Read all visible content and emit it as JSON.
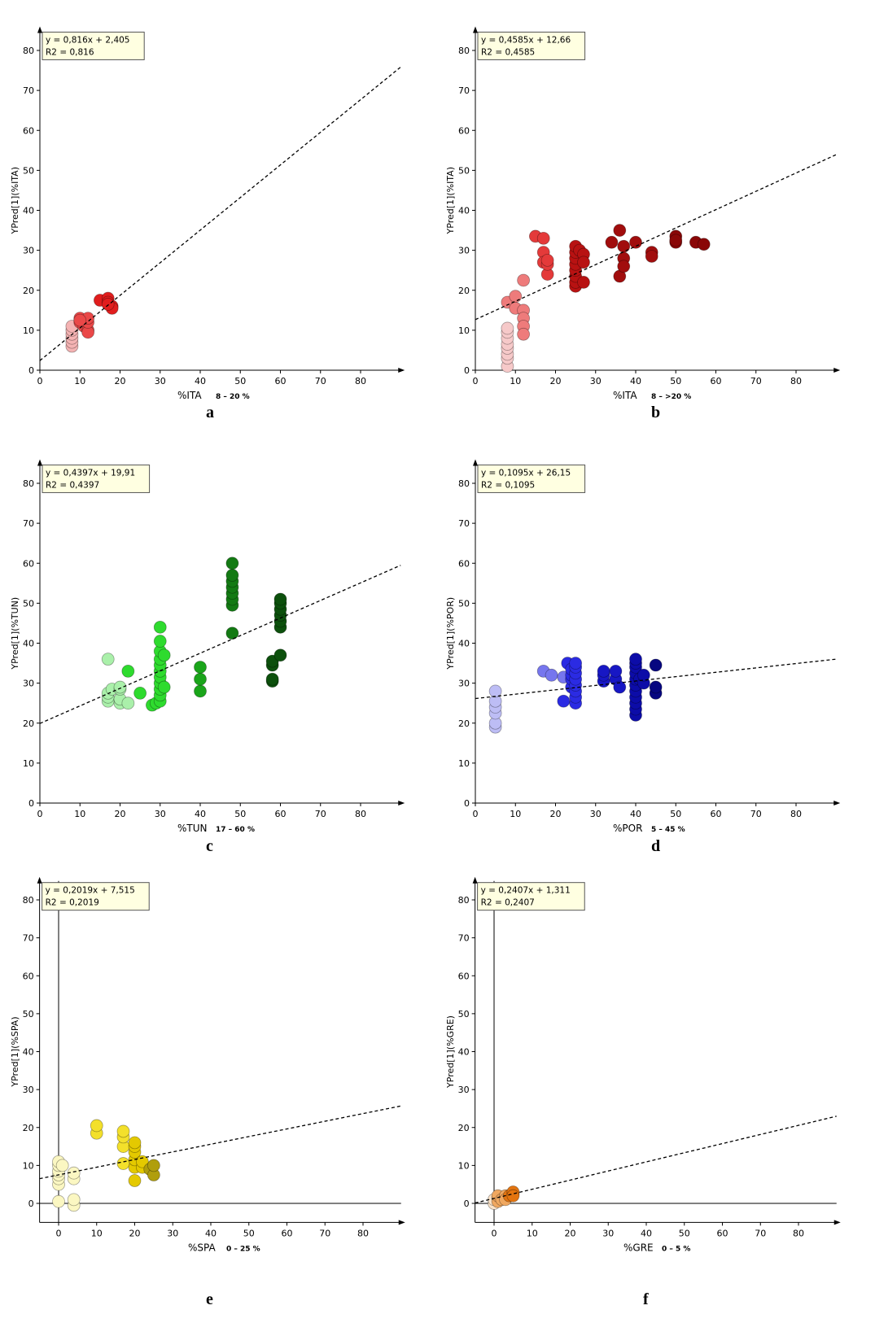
{
  "chart_data": [
    {
      "type": "scatter",
      "panel_letter": "a",
      "xlabel": "%ITA",
      "xrange_label": "8 – 20 %",
      "ylabel": "YPred[1](%ITA)",
      "xlim": [
        0,
        90
      ],
      "ylim": [
        0,
        85
      ],
      "xticks": [
        0,
        10,
        20,
        30,
        40,
        50,
        60,
        70,
        80
      ],
      "yticks": [
        0,
        10,
        20,
        30,
        40,
        50,
        60,
        70,
        80
      ],
      "equation": "y = 0,816x + 2,405",
      "r2": "R2 = 0,816",
      "trend": {
        "slope": 0.816,
        "intercept": 2.405
      },
      "series": [
        {
          "color": "#f4b3b3",
          "points": [
            [
              8,
              6
            ],
            [
              8,
              7
            ],
            [
              8,
              8
            ],
            [
              8,
              9
            ],
            [
              8,
              10
            ],
            [
              8,
              11
            ]
          ]
        },
        {
          "color": "#ea4848",
          "points": [
            [
              10,
              12
            ],
            [
              10,
              13
            ],
            [
              11,
              11
            ],
            [
              12,
              10
            ],
            [
              12,
              9.5
            ],
            [
              12,
              12
            ],
            [
              12,
              13
            ],
            [
              10,
              12.5
            ]
          ]
        },
        {
          "color": "#e11d1d",
          "points": [
            [
              15,
              17.5
            ],
            [
              17,
              18
            ],
            [
              17,
              17
            ],
            [
              18,
              16
            ],
            [
              18,
              15.5
            ],
            [
              17,
              16.5
            ]
          ]
        }
      ]
    },
    {
      "type": "scatter",
      "panel_letter": "b",
      "xlabel": "%ITA",
      "xrange_label": "8 – >20 %",
      "ylabel": "YPred[1](%ITA)",
      "xlim": [
        0,
        90
      ],
      "ylim": [
        0,
        85
      ],
      "xticks": [
        0,
        10,
        20,
        30,
        40,
        50,
        60,
        70,
        80
      ],
      "yticks": [
        0,
        10,
        20,
        30,
        40,
        50,
        60,
        70,
        80
      ],
      "equation": "y = 0,4585x + 12,66",
      "r2": "R2 = 0,4585",
      "trend": {
        "slope": 0.4585,
        "intercept": 12.66
      },
      "series": [
        {
          "color": "#f6c9c9",
          "points": [
            [
              8,
              1
            ],
            [
              8,
              3
            ],
            [
              8,
              4
            ],
            [
              8,
              5.5
            ],
            [
              8,
              6.5
            ],
            [
              8,
              8
            ],
            [
              8,
              9.5
            ],
            [
              8,
              10.5
            ]
          ]
        },
        {
          "color": "#ee7b7b",
          "points": [
            [
              8,
              17
            ],
            [
              10,
              18.5
            ],
            [
              10,
              15.5
            ],
            [
              12,
              22.5
            ],
            [
              12,
              15
            ],
            [
              12,
              13
            ],
            [
              12,
              11
            ],
            [
              12,
              9
            ]
          ]
        },
        {
          "color": "#e43a3a",
          "points": [
            [
              15,
              33.5
            ],
            [
              17,
              33
            ],
            [
              17,
              29.5
            ],
            [
              17,
              27
            ],
            [
              18,
              24
            ],
            [
              18,
              26.5
            ],
            [
              18,
              27.5
            ]
          ]
        },
        {
          "color": "#b81212",
          "points": [
            [
              25,
              21
            ],
            [
              25,
              22
            ],
            [
              25,
              23.5
            ],
            [
              25,
              25
            ],
            [
              25,
              26.5
            ],
            [
              25,
              28
            ],
            [
              25,
              29.5
            ],
            [
              25,
              31
            ],
            [
              26,
              30
            ],
            [
              27,
              29
            ],
            [
              27,
              27
            ],
            [
              27,
              22
            ]
          ]
        },
        {
          "color": "#a10d0d",
          "points": [
            [
              34,
              32
            ],
            [
              36,
              35
            ],
            [
              36,
              23.5
            ],
            [
              37,
              31
            ],
            [
              37,
              28
            ],
            [
              37,
              26
            ],
            [
              40,
              32
            ],
            [
              44,
              29.5
            ],
            [
              44,
              28.5
            ]
          ]
        },
        {
          "color": "#8a0707",
          "points": [
            [
              50,
              32
            ],
            [
              50,
              33.5
            ],
            [
              50,
              32.5
            ],
            [
              55,
              32
            ],
            [
              57,
              31.5
            ]
          ]
        }
      ]
    },
    {
      "type": "scatter",
      "panel_letter": "c",
      "xlabel": "%TUN",
      "xrange_label": "17 – 60 %",
      "ylabel": "YPred[1](%TUN)",
      "xlim": [
        0,
        90
      ],
      "ylim": [
        0,
        85
      ],
      "xticks": [
        0,
        10,
        20,
        30,
        40,
        50,
        60,
        70,
        80
      ],
      "yticks": [
        0,
        10,
        20,
        30,
        40,
        50,
        60,
        70,
        80
      ],
      "equation": "y = 0,4397x + 19,91",
      "r2": "R2 = 0,4397",
      "trend": {
        "slope": 0.4397,
        "intercept": 19.91
      },
      "series": [
        {
          "color": "#aaf0aa",
          "points": [
            [
              17,
              36
            ],
            [
              17,
              25.5
            ],
            [
              17,
              26.5
            ],
            [
              17,
              27.5
            ],
            [
              18,
              28.5
            ],
            [
              20,
              25
            ],
            [
              20,
              26
            ],
            [
              20,
              28.5
            ],
            [
              20,
              29
            ],
            [
              22,
              25
            ]
          ]
        },
        {
          "color": "#2edb2e",
          "points": [
            [
              22,
              33
            ],
            [
              25,
              27.5
            ],
            [
              28,
              24.5
            ],
            [
              29,
              25
            ],
            [
              30,
              25.5
            ],
            [
              30,
              27
            ],
            [
              30,
              28.5
            ],
            [
              30,
              30
            ],
            [
              30,
              31.5
            ],
            [
              30,
              33
            ],
            [
              30,
              34.5
            ],
            [
              30,
              36
            ],
            [
              30,
              38
            ],
            [
              30,
              40.5
            ],
            [
              30,
              44
            ],
            [
              31,
              29
            ],
            [
              31,
              37
            ]
          ]
        },
        {
          "color": "#1aa51a",
          "points": [
            [
              40,
              28
            ],
            [
              40,
              31
            ],
            [
              40,
              34
            ]
          ]
        },
        {
          "color": "#137a13",
          "points": [
            [
              48,
              42.5
            ],
            [
              48,
              49.5
            ],
            [
              48,
              51
            ],
            [
              48,
              52.5
            ],
            [
              48,
              54
            ],
            [
              48,
              55.5
            ],
            [
              48,
              57
            ],
            [
              48,
              60
            ]
          ]
        },
        {
          "color": "#0c500c",
          "points": [
            [
              58,
              30.5
            ],
            [
              58,
              31
            ],
            [
              58,
              34.5
            ],
            [
              58,
              35.5
            ],
            [
              60,
              37
            ],
            [
              60,
              44
            ],
            [
              60,
              45.5
            ],
            [
              60,
              47
            ],
            [
              60,
              48.5
            ],
            [
              60,
              50
            ],
            [
              60,
              51
            ]
          ]
        }
      ]
    },
    {
      "type": "scatter",
      "panel_letter": "d",
      "xlabel": "%POR",
      "xrange_label": "5 – 45 %",
      "ylabel": "YPred[1](%POR)",
      "xlim": [
        0,
        90
      ],
      "ylim": [
        0,
        85
      ],
      "xticks": [
        0,
        10,
        20,
        30,
        40,
        50,
        60,
        70,
        80
      ],
      "yticks": [
        0,
        10,
        20,
        30,
        40,
        50,
        60,
        70,
        80
      ],
      "equation": "y = 0,1095x + 26,15",
      "r2": "R2 = 0,1095",
      "trend": {
        "slope": 0.1095,
        "intercept": 26.15
      },
      "series": [
        {
          "color": "#bdbdf5",
          "points": [
            [
              5,
              19
            ],
            [
              5,
              20
            ],
            [
              5,
              22.5
            ],
            [
              5,
              24
            ],
            [
              5,
              25.5
            ],
            [
              5,
              28
            ]
          ]
        },
        {
          "color": "#7676ee",
          "points": [
            [
              17,
              33
            ],
            [
              19,
              32
            ],
            [
              22,
              31.5
            ]
          ]
        },
        {
          "color": "#2b2be3",
          "points": [
            [
              22,
              25.5
            ],
            [
              23,
              35
            ],
            [
              24,
              29
            ],
            [
              24,
              31
            ],
            [
              24,
              32
            ],
            [
              24,
              33.5
            ],
            [
              25,
              25
            ],
            [
              25,
              26.5
            ],
            [
              25,
              28
            ],
            [
              25,
              29.5
            ],
            [
              25,
              31
            ],
            [
              25,
              32.5
            ],
            [
              25,
              34
            ],
            [
              25,
              35
            ]
          ]
        },
        {
          "color": "#1717c4",
          "points": [
            [
              32,
              30.5
            ],
            [
              32,
              32
            ],
            [
              32,
              33
            ],
            [
              35,
              31
            ],
            [
              35,
              33
            ],
            [
              36,
              29
            ]
          ]
        },
        {
          "color": "#0c0ca8",
          "points": [
            [
              40,
              22
            ],
            [
              40,
              23.5
            ],
            [
              40,
              25
            ],
            [
              40,
              26.5
            ],
            [
              40,
              28
            ],
            [
              40,
              29.5
            ],
            [
              40,
              31
            ],
            [
              40,
              32.5
            ],
            [
              40,
              34
            ],
            [
              40,
              35
            ],
            [
              40,
              36
            ],
            [
              41,
              31
            ],
            [
              42,
              30
            ],
            [
              42,
              32
            ]
          ]
        },
        {
          "color": "#070780",
          "points": [
            [
              45,
              27.5
            ],
            [
              45,
              29
            ],
            [
              45,
              34.5
            ]
          ]
        }
      ]
    },
    {
      "type": "scatter",
      "panel_letter": "e",
      "xlabel": "%SPA",
      "xrange_label": "0 – 25 %",
      "ylabel": "YPred[1](%SPA)",
      "xlim": [
        -5,
        90
      ],
      "ylim": [
        -5,
        85
      ],
      "xticks": [
        0,
        10,
        20,
        30,
        40,
        50,
        60,
        70,
        80
      ],
      "yticks": [
        0,
        10,
        20,
        30,
        40,
        50,
        60,
        70,
        80
      ],
      "equation": "y = 0,2019x + 7,515",
      "r2": "R2 = 0,2019",
      "trend": {
        "slope": 0.2019,
        "intercept": 7.515
      },
      "series": [
        {
          "color": "#fbf7c2",
          "points": [
            [
              0,
              0.5
            ],
            [
              0,
              5
            ],
            [
              0,
              6.5
            ],
            [
              0,
              7.5
            ],
            [
              0,
              8.5
            ],
            [
              0,
              10
            ],
            [
              0,
              11
            ],
            [
              1,
              10
            ],
            [
              4,
              -0.5
            ],
            [
              4,
              1
            ],
            [
              4,
              6.5
            ],
            [
              4,
              8
            ]
          ]
        },
        {
          "color": "#f3e02b",
          "points": [
            [
              10,
              18.5
            ],
            [
              10,
              20.5
            ],
            [
              17,
              10.5
            ],
            [
              17,
              15
            ],
            [
              17,
              17.5
            ],
            [
              17,
              19
            ]
          ]
        },
        {
          "color": "#e4c900",
          "points": [
            [
              20,
              6
            ],
            [
              20,
              9.5
            ],
            [
              20,
              11.5
            ],
            [
              20,
              13.5
            ],
            [
              20,
              15
            ],
            [
              20,
              16
            ],
            [
              22,
              9.5
            ],
            [
              22,
              11
            ]
          ]
        },
        {
          "color": "#b09e0c",
          "points": [
            [
              24,
              9
            ],
            [
              25,
              7.5
            ],
            [
              25,
              10
            ]
          ]
        }
      ]
    },
    {
      "type": "scatter",
      "panel_letter": "f",
      "xlabel": "%GRE",
      "xrange_label": "0 – 5 %",
      "ylabel": "YPred[1](%GRE)",
      "xlim": [
        -5,
        90
      ],
      "ylim": [
        -5,
        85
      ],
      "xticks": [
        0,
        10,
        20,
        30,
        40,
        50,
        60,
        70,
        80
      ],
      "yticks": [
        0,
        10,
        20,
        30,
        40,
        50,
        60,
        70,
        80
      ],
      "equation": "y = 0,2407x + 1,311",
      "r2": "R2 = 0,2407",
      "trend": {
        "slope": 0.2407,
        "intercept": 1.311
      },
      "series": [
        {
          "color": "#fbe3c8",
          "points": [
            [
              0,
              0
            ],
            [
              0,
              1
            ],
            [
              1,
              1.5
            ]
          ]
        },
        {
          "color": "#f0a860",
          "points": [
            [
              1,
              0.5
            ],
            [
              1,
              2
            ],
            [
              2,
              1
            ],
            [
              3,
              2
            ],
            [
              3,
              1
            ]
          ]
        },
        {
          "color": "#e3740f",
          "points": [
            [
              4,
              2
            ],
            [
              5,
              2.5
            ],
            [
              5,
              3
            ],
            [
              5,
              2
            ]
          ]
        }
      ]
    }
  ]
}
